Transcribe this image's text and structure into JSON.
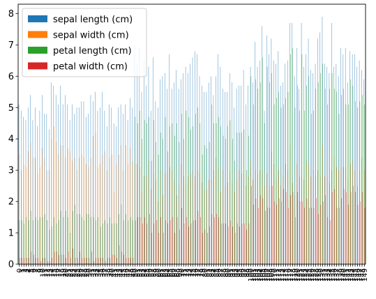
{
  "chart_data": {
    "type": "bar",
    "title": "",
    "xlabel": "",
    "ylabel": "",
    "ylim": [
      0,
      8.3
    ],
    "yticks": [
      0,
      1,
      2,
      3,
      4,
      5,
      6,
      7,
      8
    ],
    "grid": false,
    "legend_position": "top-left",
    "categories": [
      "0",
      "1",
      "2",
      "3",
      "4",
      "5",
      "6",
      "7",
      "8",
      "9",
      "10",
      "11",
      "12",
      "13",
      "14",
      "15",
      "16",
      "17",
      "18",
      "19",
      "20",
      "21",
      "22",
      "23",
      "24",
      "25",
      "26",
      "27",
      "28",
      "29",
      "30",
      "31",
      "32",
      "33",
      "34",
      "35",
      "36",
      "37",
      "38",
      "39",
      "40",
      "41",
      "42",
      "43",
      "44",
      "45",
      "46",
      "47",
      "48",
      "49",
      "50",
      "51",
      "52",
      "53",
      "54",
      "55",
      "56",
      "57",
      "58",
      "59",
      "60",
      "61",
      "62",
      "63",
      "64",
      "65",
      "66",
      "67",
      "68",
      "69",
      "70",
      "71",
      "72",
      "73",
      "74",
      "75",
      "76",
      "77",
      "78",
      "79",
      "80",
      "81",
      "82",
      "83",
      "84",
      "85",
      "86",
      "87",
      "88",
      "89",
      "90",
      "91",
      "92",
      "93",
      "94",
      "95",
      "96",
      "97",
      "98",
      "99",
      "100",
      "101",
      "102",
      "103",
      "104",
      "105",
      "106",
      "107",
      "108",
      "109",
      "110",
      "111",
      "112",
      "113",
      "114",
      "115",
      "116",
      "117",
      "118",
      "119",
      "120",
      "121",
      "122",
      "123",
      "124",
      "125",
      "126",
      "127",
      "128",
      "129",
      "130",
      "131",
      "132",
      "133",
      "134",
      "135",
      "136",
      "137",
      "138",
      "139",
      "140",
      "141",
      "142",
      "143",
      "144",
      "145",
      "146",
      "147",
      "148",
      "149"
    ],
    "series": [
      {
        "name": "sepal length (cm)",
        "color": "#1f77b4",
        "values": [
          5.1,
          4.9,
          4.7,
          4.6,
          5.0,
          5.4,
          4.6,
          5.0,
          4.4,
          4.9,
          5.4,
          4.8,
          4.8,
          4.3,
          5.8,
          5.7,
          5.4,
          5.1,
          5.7,
          5.1,
          5.4,
          5.1,
          4.6,
          5.1,
          4.8,
          5.0,
          5.0,
          5.2,
          5.2,
          4.7,
          4.8,
          5.4,
          5.2,
          5.5,
          4.9,
          5.0,
          5.5,
          4.9,
          4.4,
          5.1,
          5.0,
          4.5,
          4.4,
          5.0,
          5.1,
          4.8,
          5.1,
          4.6,
          5.3,
          5.0,
          7.0,
          6.4,
          6.9,
          5.5,
          6.5,
          5.7,
          6.3,
          4.9,
          6.6,
          5.2,
          5.0,
          5.9,
          6.0,
          6.1,
          5.6,
          6.7,
          5.6,
          5.8,
          6.2,
          5.6,
          5.9,
          6.1,
          6.3,
          6.1,
          6.4,
          6.6,
          6.8,
          6.7,
          6.0,
          5.7,
          5.5,
          5.5,
          5.8,
          6.0,
          5.4,
          6.0,
          6.7,
          6.3,
          5.6,
          5.5,
          5.5,
          6.1,
          5.8,
          5.0,
          5.6,
          5.7,
          5.7,
          6.2,
          5.1,
          5.7,
          6.3,
          5.8,
          7.1,
          6.3,
          6.5,
          7.6,
          4.9,
          7.3,
          6.7,
          7.2,
          6.5,
          6.4,
          6.8,
          5.7,
          5.8,
          6.4,
          6.5,
          7.7,
          7.7,
          6.0,
          6.9,
          5.6,
          7.7,
          6.3,
          6.7,
          7.2,
          6.2,
          6.1,
          6.4,
          7.2,
          7.4,
          7.9,
          6.4,
          6.3,
          6.1,
          7.7,
          6.3,
          6.4,
          6.0,
          6.9,
          6.7,
          6.9,
          5.8,
          6.8,
          6.7,
          6.7,
          6.3,
          6.5,
          6.2,
          5.9
        ]
      },
      {
        "name": "sepal width (cm)",
        "color": "#ff7f0e",
        "values": [
          3.5,
          3.0,
          3.2,
          3.1,
          3.6,
          3.9,
          3.4,
          3.4,
          2.9,
          3.1,
          3.7,
          3.4,
          3.0,
          3.0,
          4.0,
          4.4,
          3.9,
          3.5,
          3.8,
          3.8,
          3.4,
          3.7,
          3.6,
          3.3,
          3.4,
          3.0,
          3.4,
          3.5,
          3.4,
          3.2,
          3.1,
          3.4,
          4.1,
          4.2,
          3.1,
          3.2,
          3.5,
          3.6,
          3.0,
          3.4,
          3.5,
          2.3,
          3.2,
          3.5,
          3.8,
          3.0,
          3.8,
          3.2,
          3.7,
          3.3,
          3.2,
          3.2,
          3.1,
          2.3,
          2.8,
          2.8,
          3.3,
          2.4,
          2.9,
          2.7,
          2.0,
          3.0,
          2.2,
          2.9,
          2.9,
          3.1,
          3.0,
          2.7,
          2.2,
          2.5,
          3.2,
          2.8,
          2.5,
          2.8,
          2.9,
          3.0,
          2.8,
          3.0,
          2.9,
          2.6,
          2.4,
          2.4,
          2.7,
          2.7,
          3.0,
          3.4,
          3.1,
          2.3,
          3.0,
          2.5,
          2.6,
          3.0,
          2.6,
          2.3,
          2.7,
          3.0,
          2.9,
          2.9,
          2.5,
          2.8,
          3.3,
          2.7,
          3.0,
          2.9,
          3.0,
          3.0,
          2.5,
          2.9,
          2.5,
          3.6,
          3.2,
          2.7,
          3.0,
          2.5,
          2.8,
          3.2,
          3.0,
          3.8,
          2.6,
          2.2,
          3.2,
          2.8,
          2.8,
          2.7,
          3.3,
          3.2,
          2.8,
          3.0,
          2.8,
          3.0,
          2.8,
          3.8,
          2.8,
          2.8,
          2.6,
          3.0,
          3.4,
          3.1,
          3.0,
          3.1,
          3.1,
          3.1,
          2.7,
          3.2,
          3.3,
          3.0,
          2.5,
          3.0,
          3.4,
          3.0
        ]
      },
      {
        "name": "petal length (cm)",
        "color": "#2ca02c",
        "values": [
          1.4,
          1.4,
          1.3,
          1.5,
          1.4,
          1.7,
          1.4,
          1.5,
          1.4,
          1.5,
          1.5,
          1.6,
          1.4,
          1.1,
          1.2,
          1.5,
          1.3,
          1.4,
          1.7,
          1.5,
          1.7,
          1.5,
          1.0,
          1.7,
          1.9,
          1.6,
          1.6,
          1.5,
          1.4,
          1.6,
          1.6,
          1.5,
          1.5,
          1.4,
          1.5,
          1.2,
          1.3,
          1.4,
          1.3,
          1.5,
          1.3,
          1.3,
          1.3,
          1.6,
          1.9,
          1.4,
          1.6,
          1.4,
          1.5,
          1.4,
          4.7,
          4.5,
          4.9,
          4.0,
          4.6,
          4.5,
          4.7,
          3.3,
          4.6,
          3.9,
          3.5,
          4.2,
          4.0,
          4.7,
          3.6,
          4.4,
          4.5,
          4.1,
          4.5,
          3.9,
          4.8,
          4.0,
          4.9,
          4.7,
          4.3,
          4.4,
          4.8,
          5.0,
          4.5,
          3.5,
          3.8,
          3.7,
          3.9,
          5.1,
          4.5,
          4.5,
          4.7,
          4.4,
          4.1,
          4.0,
          4.4,
          4.6,
          4.0,
          3.3,
          4.2,
          4.2,
          4.2,
          4.3,
          3.0,
          4.1,
          6.0,
          5.1,
          5.9,
          5.6,
          5.8,
          6.6,
          4.5,
          6.3,
          5.8,
          6.1,
          5.1,
          5.3,
          5.5,
          5.0,
          5.1,
          5.3,
          5.5,
          6.7,
          6.9,
          5.0,
          5.7,
          4.9,
          6.7,
          4.9,
          5.7,
          6.0,
          4.8,
          4.9,
          5.6,
          5.8,
          6.1,
          6.4,
          5.6,
          5.1,
          5.6,
          6.1,
          5.6,
          5.5,
          4.8,
          5.4,
          5.6,
          5.1,
          5.1,
          5.9,
          5.7,
          5.2,
          5.0,
          5.2,
          5.4,
          5.1
        ]
      },
      {
        "name": "petal width (cm)",
        "color": "#d62728",
        "values": [
          0.2,
          0.2,
          0.2,
          0.2,
          0.2,
          0.4,
          0.3,
          0.2,
          0.2,
          0.1,
          0.2,
          0.2,
          0.1,
          0.1,
          0.2,
          0.4,
          0.4,
          0.3,
          0.3,
          0.3,
          0.2,
          0.4,
          0.2,
          0.5,
          0.2,
          0.2,
          0.4,
          0.2,
          0.2,
          0.2,
          0.2,
          0.4,
          0.1,
          0.2,
          0.2,
          0.2,
          0.2,
          0.1,
          0.2,
          0.2,
          0.3,
          0.3,
          0.2,
          0.6,
          0.4,
          0.3,
          0.2,
          0.2,
          0.2,
          0.2,
          1.4,
          1.5,
          1.5,
          1.3,
          1.5,
          1.3,
          1.6,
          1.0,
          1.3,
          1.4,
          1.0,
          1.5,
          1.0,
          1.4,
          1.3,
          1.4,
          1.5,
          1.0,
          1.5,
          1.1,
          1.8,
          1.3,
          1.5,
          1.2,
          1.3,
          1.4,
          1.4,
          1.7,
          1.5,
          1.0,
          1.1,
          1.0,
          1.2,
          1.6,
          1.5,
          1.6,
          1.5,
          1.3,
          1.3,
          1.3,
          1.2,
          1.4,
          1.2,
          1.0,
          1.3,
          1.2,
          1.3,
          1.3,
          1.1,
          1.3,
          2.5,
          1.9,
          2.1,
          1.8,
          2.2,
          2.1,
          1.7,
          1.8,
          1.8,
          2.5,
          2.0,
          1.9,
          2.1,
          2.0,
          2.4,
          2.3,
          1.8,
          2.2,
          2.3,
          1.5,
          2.3,
          2.0,
          2.0,
          1.8,
          2.1,
          1.8,
          1.8,
          1.8,
          2.1,
          1.6,
          1.9,
          2.0,
          2.2,
          1.5,
          1.4,
          2.3,
          2.4,
          1.8,
          1.8,
          2.1,
          2.4,
          2.3,
          1.9,
          2.3,
          2.5,
          2.3,
          1.9,
          2.0,
          2.3,
          1.8
        ]
      }
    ]
  }
}
